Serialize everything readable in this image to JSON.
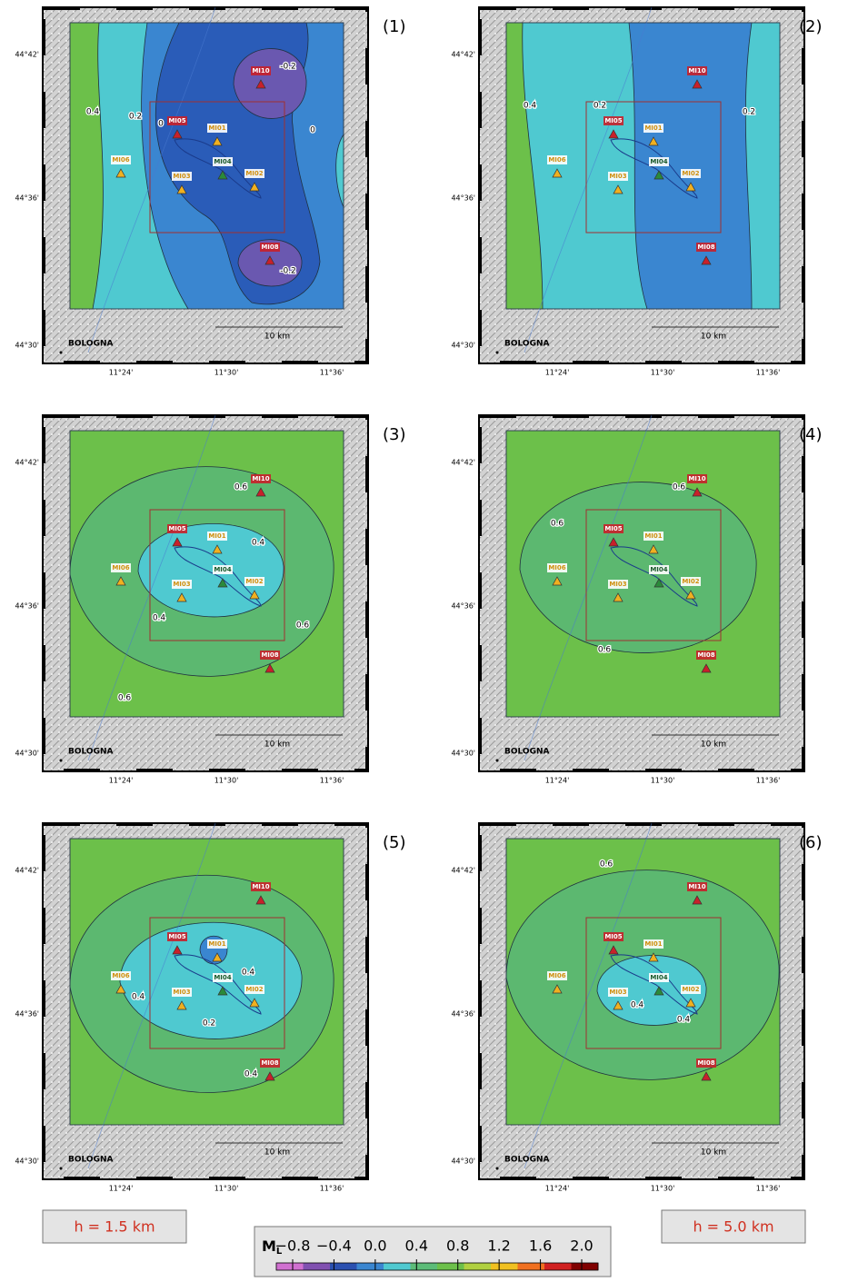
{
  "panels": [
    {
      "label": "(1)",
      "contour_labels": [
        "0.4",
        "0.2",
        "0",
        "0",
        "-0.2",
        "-0.2"
      ]
    },
    {
      "label": "(2)",
      "contour_labels": [
        "0.4",
        "0.2",
        "0.2"
      ]
    },
    {
      "label": "(3)",
      "contour_labels": [
        "0.6",
        "0.4",
        "0.4",
        "0.6",
        "0.6"
      ]
    },
    {
      "label": "(4)",
      "contour_labels": [
        "0.6",
        "0.6",
        "0.6"
      ]
    },
    {
      "label": "(5)",
      "contour_labels": [
        "0.4",
        "0.4",
        "0.2",
        "0.4"
      ]
    },
    {
      "label": "(6)",
      "contour_labels": [
        "0.6",
        "0.4",
        "0.4"
      ]
    }
  ],
  "stations": [
    {
      "name": "MI10",
      "color": "#c8202a"
    },
    {
      "name": "MI05",
      "color": "#c8202a"
    },
    {
      "name": "MI01",
      "color": "#f0b020"
    },
    {
      "name": "MI04",
      "color": "#2a8a3a"
    },
    {
      "name": "MI06",
      "color": "#f0b020"
    },
    {
      "name": "MI03",
      "color": "#f0b020"
    },
    {
      "name": "MI02",
      "color": "#f0b020"
    },
    {
      "name": "MI08",
      "color": "#c8202a"
    }
  ],
  "lat_ticks": [
    "44°42'",
    "44°36'",
    "44°30'"
  ],
  "lon_ticks": [
    "11°24'",
    "11°30'",
    "11°36'"
  ],
  "place": "BOLOGNA",
  "scale": "10 km",
  "depth_labels": [
    "h = 1.5 km",
    "h = 5.0 km"
  ],
  "colorbar": {
    "label": "M",
    "subscript": "L",
    "ticks": [
      {
        "value": -0.8,
        "label": "−0.8"
      },
      {
        "value": -0.4,
        "label": "−0.4"
      },
      {
        "value": 0,
        "label": "0.0"
      },
      {
        "value": 0.4,
        "label": "0.4"
      },
      {
        "value": 0.8,
        "label": "0.8"
      },
      {
        "value": 1.2,
        "label": "1.2"
      },
      {
        "value": 1.6,
        "label": "1.6"
      },
      {
        "value": 2,
        "label": "2.0"
      }
    ],
    "colors": [
      "#d070d0",
      "#8050b0",
      "#2a50b0",
      "#3a86d0",
      "#4fc9d0",
      "#5cbc78",
      "#6cc04a",
      "#b0d040",
      "#f0c020",
      "#f07020",
      "#d02020",
      "#800000"
    ]
  }
}
